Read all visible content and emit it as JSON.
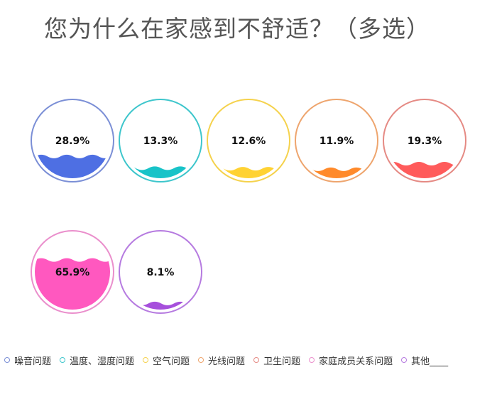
{
  "page": {
    "title": "您为什么在家感到不舒适？（多选）"
  },
  "chart_data": {
    "type": "liquidfill",
    "title": "您为什么在家感到不舒适？（多选）",
    "unit": "%",
    "series": [
      {
        "name": "噪音问题",
        "value": 28.9,
        "label": "28.9%",
        "color": "#4e6fe3",
        "ring": "#7b8fd6"
      },
      {
        "name": "温度、湿度问题",
        "value": 13.3,
        "label": "13.3%",
        "color": "#18c3c8",
        "ring": "#3ec6cc"
      },
      {
        "name": "空气问题",
        "value": 12.6,
        "label": "12.6%",
        "color": "#ffd233",
        "ring": "#f5d24d"
      },
      {
        "name": "光线问题",
        "value": 11.9,
        "label": "11.9%",
        "color": "#ff8a2b",
        "ring": "#eea56e"
      },
      {
        "name": "卫生问题",
        "value": 19.3,
        "label": "19.3%",
        "color": "#ff5b5b",
        "ring": "#e58a84"
      },
      {
        "name": "家庭成员关系问题",
        "value": 65.9,
        "label": "65.9%",
        "color": "#ff58bf",
        "ring": "#ea8fcc"
      },
      {
        "name": "其他____",
        "value": 8.1,
        "label": "8.1%",
        "color": "#a64fdc",
        "ring": "#b67be0"
      }
    ],
    "legend_placement": "bottom"
  }
}
